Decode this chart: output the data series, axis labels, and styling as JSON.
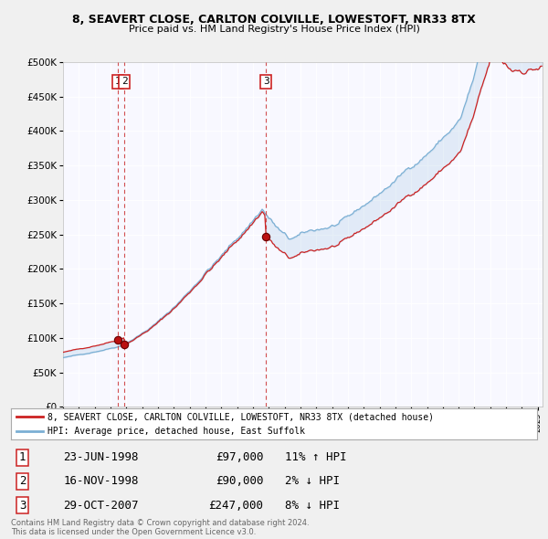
{
  "title1": "8, SEAVERT CLOSE, CARLTON COLVILLE, LOWESTOFT, NR33 8TX",
  "title2": "Price paid vs. HM Land Registry's House Price Index (HPI)",
  "legend_line1": "8, SEAVERT CLOSE, CARLTON COLVILLE, LOWESTOFT, NR33 8TX (detached house)",
  "legend_line2": "HPI: Average price, detached house, East Suffolk",
  "transactions": [
    {
      "num": 1,
      "date": "23-JUN-1998",
      "price": 97000,
      "pct": "11%",
      "dir": "↑"
    },
    {
      "num": 2,
      "date": "16-NOV-1998",
      "price": 90000,
      "pct": "2%",
      "dir": "↓"
    },
    {
      "num": 3,
      "date": "29-OCT-2007",
      "price": 247000,
      "pct": "8%",
      "dir": "↓"
    }
  ],
  "t_dates": [
    1998.47,
    1998.88,
    2007.83
  ],
  "t_prices": [
    97000,
    90000,
    247000
  ],
  "ylim": [
    0,
    500000
  ],
  "yticks": [
    0,
    50000,
    100000,
    150000,
    200000,
    250000,
    300000,
    350000,
    400000,
    450000,
    500000
  ],
  "xlim_start": 1995.0,
  "xlim_end": 2025.3,
  "hpi_color": "#7bafd4",
  "property_color": "#cc2222",
  "vline_color": "#cc3333",
  "bg_color": "#f0f0f0",
  "plot_bg": "#f8f8ff",
  "grid_color": "#ffffff",
  "footer_text1": "Contains HM Land Registry data © Crown copyright and database right 2024.",
  "footer_text2": "This data is licensed under the Open Government Licence v3.0."
}
